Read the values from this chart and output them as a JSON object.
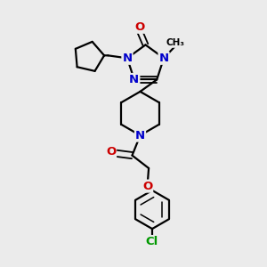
{
  "bg_color": "#ebebeb",
  "atom_colors": {
    "C": "#000000",
    "N": "#0000cc",
    "O": "#cc0000",
    "Cl": "#009900"
  },
  "bond_color": "#000000",
  "bond_width": 1.6,
  "font_size_atom": 9.5
}
